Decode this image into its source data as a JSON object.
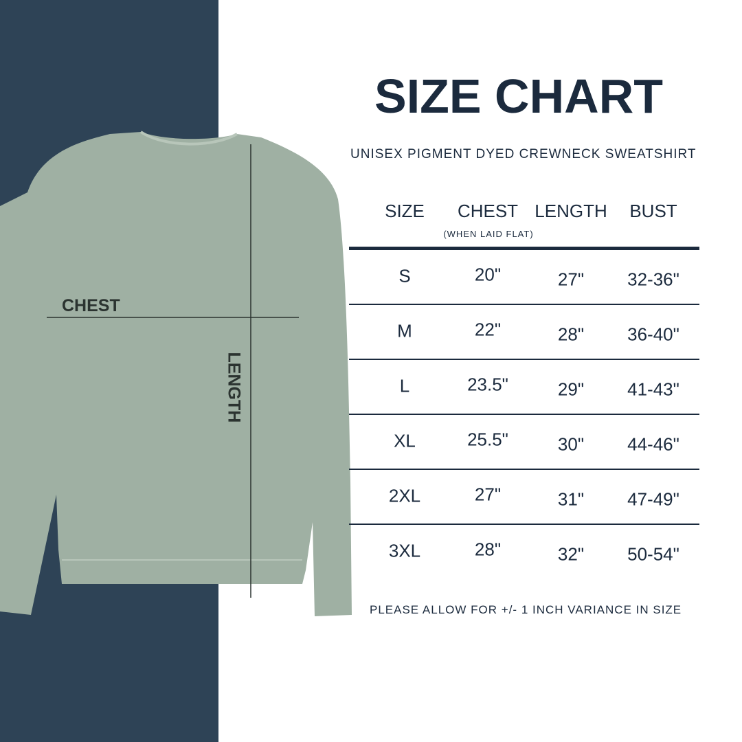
{
  "title": "SIZE CHART",
  "subtitle": "UNISEX PIGMENT DYED CREWNECK SWEATSHIRT",
  "headers": {
    "size": "SIZE",
    "chest": "CHEST",
    "chest_note": "(WHEN LAID FLAT)",
    "length": "LENGTH",
    "bust": "BUST"
  },
  "rows": [
    {
      "size": "S",
      "chest": "20\"",
      "length": "27\"",
      "bust": "32-36\""
    },
    {
      "size": "M",
      "chest": "22\"",
      "length": "28\"",
      "bust": "36-40\""
    },
    {
      "size": "L",
      "chest": "23.5\"",
      "length": "29\"",
      "bust": "41-43\""
    },
    {
      "size": "XL",
      "chest": "25.5\"",
      "length": "30\"",
      "bust": "44-46\""
    },
    {
      "size": "2XL",
      "chest": "27\"",
      "length": "31\"",
      "bust": "47-49\""
    },
    {
      "size": "3XL",
      "chest": "28\"",
      "length": "32\"",
      "bust": "50-54\""
    }
  ],
  "note": "PLEASE ALLOW FOR +/- 1 INCH VARIANCE IN SIZE",
  "diagram": {
    "chest_label": "CHEST",
    "length_label": "LENGTH"
  },
  "colors": {
    "panel": "#2e4356",
    "text": "#1b2a3d",
    "sweatshirt": "#9fb0a3"
  }
}
